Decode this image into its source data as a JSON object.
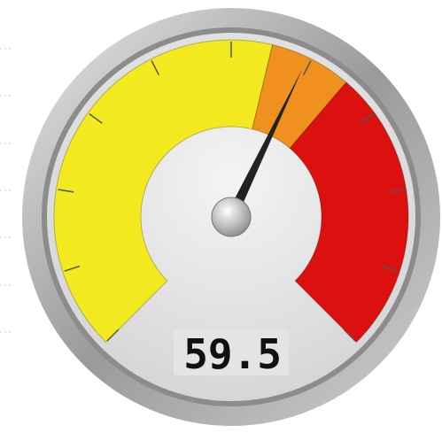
{
  "chart_data": {
    "type": "gauge",
    "value": 59.5,
    "range": [
      0,
      100
    ],
    "ticks": [
      0,
      10,
      20,
      30,
      40,
      50,
      60,
      70,
      80,
      90,
      100
    ],
    "bands": [
      {
        "from": 0,
        "to": 55,
        "color": "#f2ea1e"
      },
      {
        "from": 55,
        "to": 65,
        "color": "#f0901e"
      },
      {
        "from": 65,
        "to": 100,
        "color": "#dd1010"
      }
    ],
    "needle_color": "#222222"
  }
}
